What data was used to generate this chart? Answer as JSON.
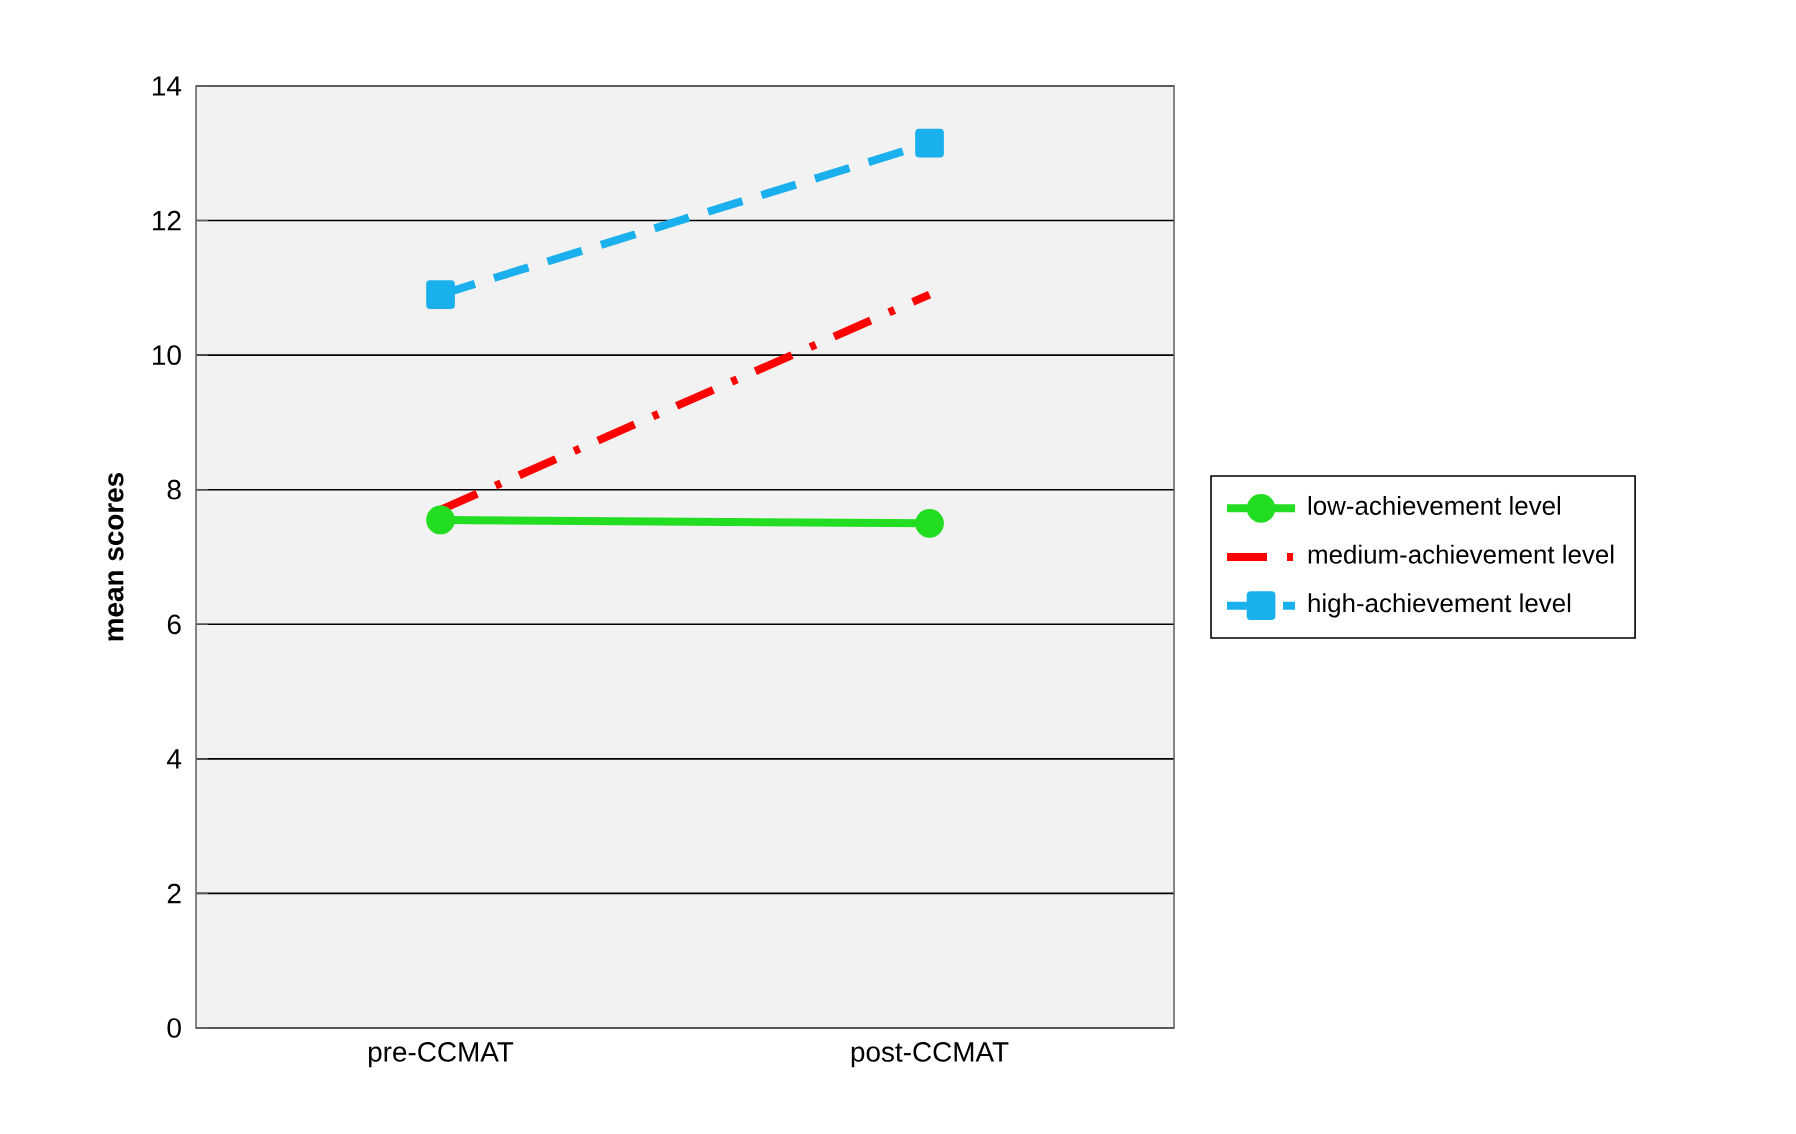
{
  "chart_data": {
    "type": "line",
    "ylabel": "mean scores",
    "categories": [
      "pre-CCMAT",
      "post-CCMAT"
    ],
    "series": [
      {
        "name": "low-achievement level",
        "color": "#22dd22",
        "values": [
          7.55,
          7.5
        ],
        "marker": "circle",
        "line_style": "solid"
      },
      {
        "name": "medium-achievement level",
        "color": "#ff0000",
        "values": [
          7.7,
          10.9
        ],
        "marker": "none",
        "line_style": "dashdotted"
      },
      {
        "name": "high-achievement level",
        "color": "#1ab0ee",
        "values": [
          10.9,
          13.15
        ],
        "marker": "square",
        "line_style": "dashed"
      }
    ],
    "ylim": [
      0,
      14
    ],
    "yticks": [
      0,
      2,
      4,
      6,
      8,
      10,
      12,
      14
    ],
    "grid": "y",
    "legend": "right"
  }
}
